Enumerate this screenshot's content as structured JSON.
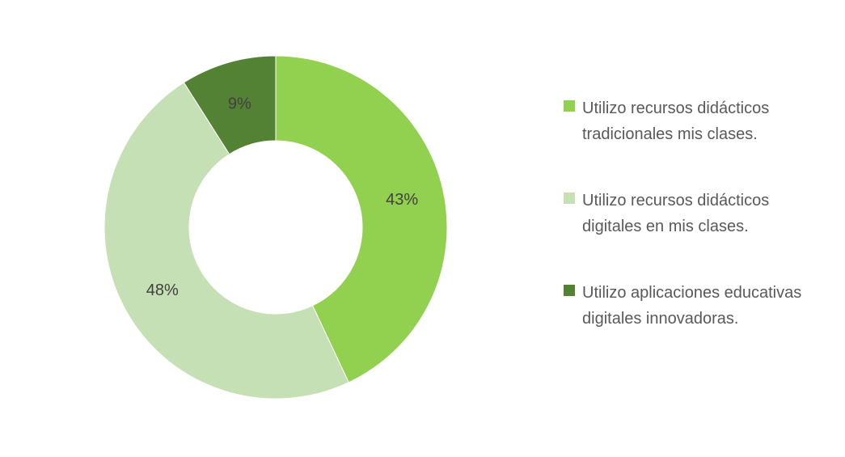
{
  "chart_data": {
    "type": "pie",
    "donut": true,
    "title": "",
    "start": "top",
    "direction": "clockwise",
    "legend_position": "right",
    "slices": [
      {
        "label": "Utilizo recursos didácticos tradicionales mis clases.",
        "value": 43,
        "data_label": "43%",
        "color": "#92d050"
      },
      {
        "label": "Utilizo recursos didácticos digitales en mis clases.",
        "value": 48,
        "data_label": "48%",
        "color": "#c5e0b4"
      },
      {
        "label": "Utilizo aplicaciones educativas digitales innovadoras.",
        "value": 9,
        "data_label": "9%",
        "color": "#548235"
      }
    ]
  }
}
